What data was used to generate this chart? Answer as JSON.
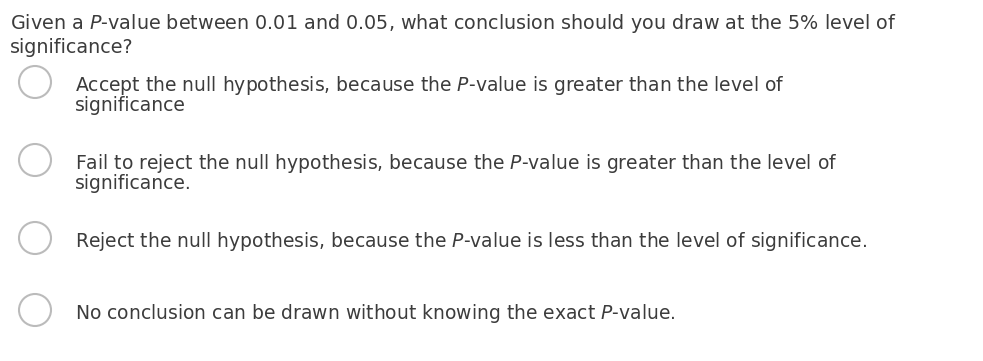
{
  "bg_color": "#ffffff",
  "text_color": "#3c3c3c",
  "question_line1": "Given a $P$-value between 0.01 and 0.05, what conclusion should you draw at the 5% level of",
  "question_line2": "significance?",
  "options": [
    [
      "Accept the null hypothesis, because the $P$-value is greater than the level of",
      "significance"
    ],
    [
      "Fail to reject the null hypothesis, because the $P$-value is greater than the level of",
      "significance."
    ],
    [
      "Reject the null hypothesis, because the $P$-value is less than the level of significance.",
      ""
    ],
    [
      "No conclusion can be drawn without knowing the exact $P$-value.",
      ""
    ]
  ],
  "question_fontsize": 13.8,
  "option_fontsize": 13.5,
  "figsize": [
    9.83,
    3.61
  ],
  "dpi": 100
}
